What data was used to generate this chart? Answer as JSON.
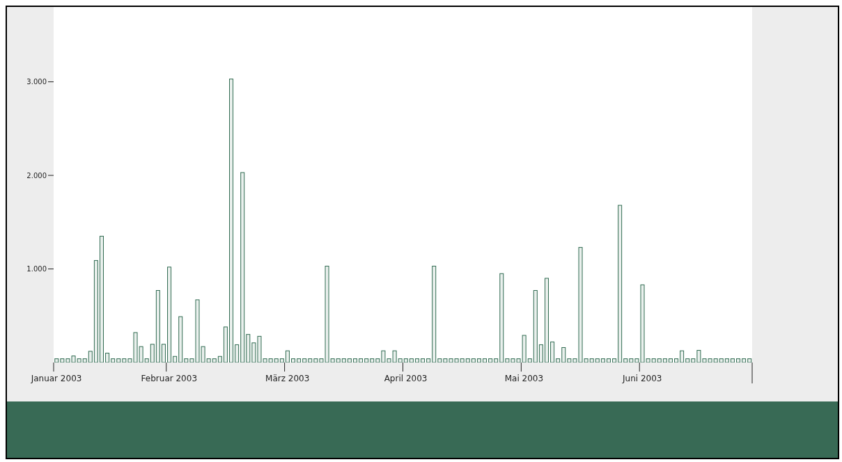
{
  "chart_data": {
    "type": "bar",
    "categories": [
      "Januar 2003",
      null,
      null,
      null,
      null,
      null,
      null,
      null,
      null,
      null,
      null,
      null,
      null,
      null,
      null,
      null,
      null,
      null,
      null,
      null,
      "Februar 2003",
      null,
      null,
      null,
      null,
      null,
      null,
      null,
      null,
      null,
      null,
      null,
      null,
      null,
      null,
      null,
      null,
      null,
      null,
      null,
      null,
      "März 2003",
      null,
      null,
      null,
      null,
      null,
      null,
      null,
      null,
      null,
      null,
      null,
      null,
      null,
      null,
      null,
      null,
      null,
      null,
      null,
      null,
      "April 2003",
      null,
      null,
      null,
      null,
      null,
      null,
      null,
      null,
      null,
      null,
      null,
      null,
      null,
      null,
      null,
      null,
      null,
      null,
      null,
      null,
      "Mai 2003",
      null,
      null,
      null,
      null,
      null,
      null,
      null,
      null,
      null,
      null,
      null,
      null,
      null,
      null,
      null,
      null,
      null,
      null,
      null,
      null,
      "Juni 2003",
      null,
      null,
      null,
      null,
      null,
      null,
      null,
      null,
      null,
      null,
      null,
      null,
      null,
      null,
      null,
      null,
      null,
      null,
      null
    ],
    "values": [
      40,
      40,
      40,
      70,
      40,
      40,
      120,
      1090,
      1350,
      100,
      40,
      40,
      40,
      40,
      320,
      170,
      40,
      195,
      770,
      195,
      1020,
      65,
      490,
      40,
      40,
      670,
      170,
      40,
      40,
      65,
      380,
      3030,
      190,
      2030,
      300,
      210,
      280,
      40,
      40,
      40,
      40,
      125,
      40,
      40,
      40,
      40,
      40,
      40,
      1030,
      40,
      40,
      40,
      40,
      40,
      40,
      40,
      40,
      40,
      125,
      40,
      125,
      40,
      40,
      40,
      40,
      40,
      40,
      1030,
      40,
      40,
      40,
      40,
      40,
      40,
      40,
      40,
      40,
      40,
      40,
      950,
      40,
      40,
      40,
      290,
      40,
      770,
      190,
      900,
      220,
      40,
      160,
      40,
      40,
      1230,
      40,
      40,
      40,
      40,
      40,
      40,
      1680,
      40,
      40,
      40,
      830,
      40,
      40,
      40,
      40,
      40,
      40,
      125,
      40,
      40,
      130,
      40,
      40,
      40,
      40,
      40,
      40,
      40,
      40,
      40
    ],
    "color": "#2f6a50",
    "ylim": [
      0,
      3800
    ],
    "yticks": [
      {
        "value": 1000,
        "label": "1.000"
      },
      {
        "value": 2000,
        "label": "2.000"
      },
      {
        "value": 3000,
        "label": "3.000"
      }
    ],
    "grid": false,
    "legend": false
  }
}
